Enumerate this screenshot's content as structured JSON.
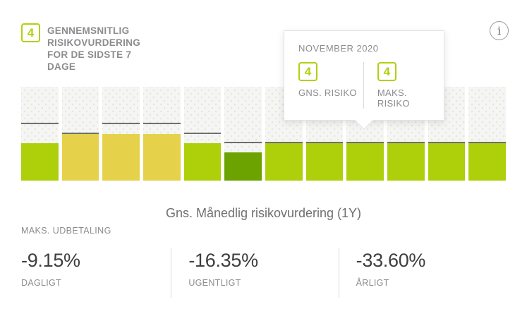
{
  "header": {
    "badge_value": "4",
    "title": "GENNEMSNITLIG RISIKOVURDERING FOR DE SIDSTE 7 DAGE"
  },
  "info_icon_glyph": "i",
  "tooltip": {
    "month": "NOVEMBER 2020",
    "avg": {
      "value": "4",
      "label": "GNS. RISIKO"
    },
    "max": {
      "value": "4",
      "label": "MAKS. RISIKO"
    }
  },
  "chart_data": {
    "type": "bar",
    "title": "Gns. Månedlig risikovurdering (1Y)",
    "ylim": [
      0,
      10
    ],
    "grid": false,
    "highlighted_index": 8,
    "highlighted_label": "NOVEMBER 2020",
    "series": [
      {
        "name": "Gns. risiko",
        "values": [
          4,
          5,
          5,
          5,
          4,
          3,
          4,
          4,
          4,
          4,
          4,
          4
        ]
      },
      {
        "name": "Maks. risiko",
        "values": [
          6,
          5,
          6,
          6,
          5,
          4,
          4,
          4,
          4,
          4,
          4,
          4
        ]
      }
    ],
    "bar_colors_by_value": {
      "3": "#6da300",
      "4": "#aed00b",
      "5": "#e6d14b"
    },
    "max_line_color": "#6f6f6f"
  },
  "caption": "Gns. Månedlig risikovurdering (1Y)",
  "drawdown": {
    "label": "MAKS. UDBETALING",
    "stats": [
      {
        "value": "-9.15%",
        "period": "DAGLIGT"
      },
      {
        "value": "-16.35%",
        "period": "UGENTLIGT"
      },
      {
        "value": "-33.60%",
        "period": "ÅRLIGT"
      }
    ]
  },
  "colors": {
    "accent_green": "#b3cf0e",
    "bar_lime": "#aed00b",
    "bar_yellow": "#e6d14b",
    "bar_dark_green": "#6da300",
    "max_line": "#6f6f6f",
    "column_background": "#f5f5f3"
  }
}
